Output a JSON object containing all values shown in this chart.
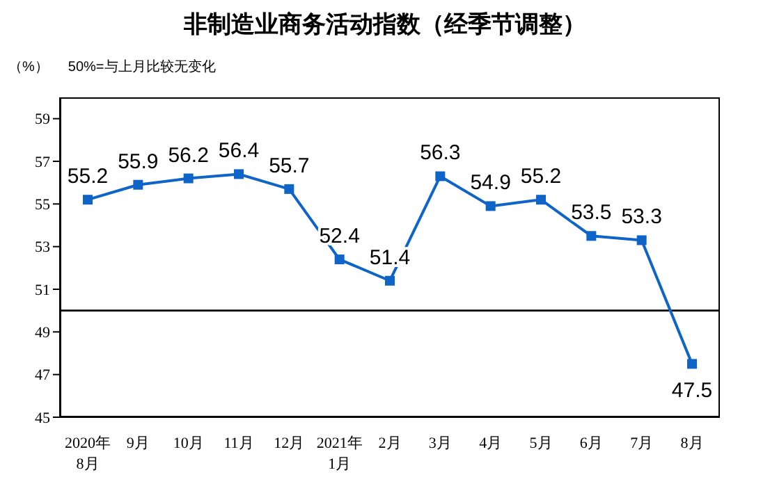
{
  "chart_data": {
    "type": "line",
    "title": "非制造业商务活动指数（经季节调整）",
    "annotations": [
      "（%）",
      "50%=与上月比较无变化"
    ],
    "categories": [
      "2020年\n8月",
      "9月",
      "10月",
      "11月",
      "12月",
      "2021年\n1月",
      "2月",
      "3月",
      "4月",
      "5月",
      "6月",
      "7月",
      "8月"
    ],
    "series": [
      {
        "color": "#0f64c8",
        "values": [
          55.2,
          55.9,
          56.2,
          56.4,
          55.7,
          52.4,
          51.4,
          56.3,
          54.9,
          55.2,
          53.5,
          53.3,
          47.5
        ]
      }
    ],
    "ylim": [
      45,
      60
    ],
    "yticks": [
      45,
      47,
      49,
      51,
      53,
      55,
      57,
      59
    ],
    "ref_lines": [
      {
        "axis": "y",
        "value": 50,
        "color": "#000000"
      }
    ],
    "marker": "square",
    "line_style": "solid",
    "grid": false,
    "data_labels": true
  }
}
